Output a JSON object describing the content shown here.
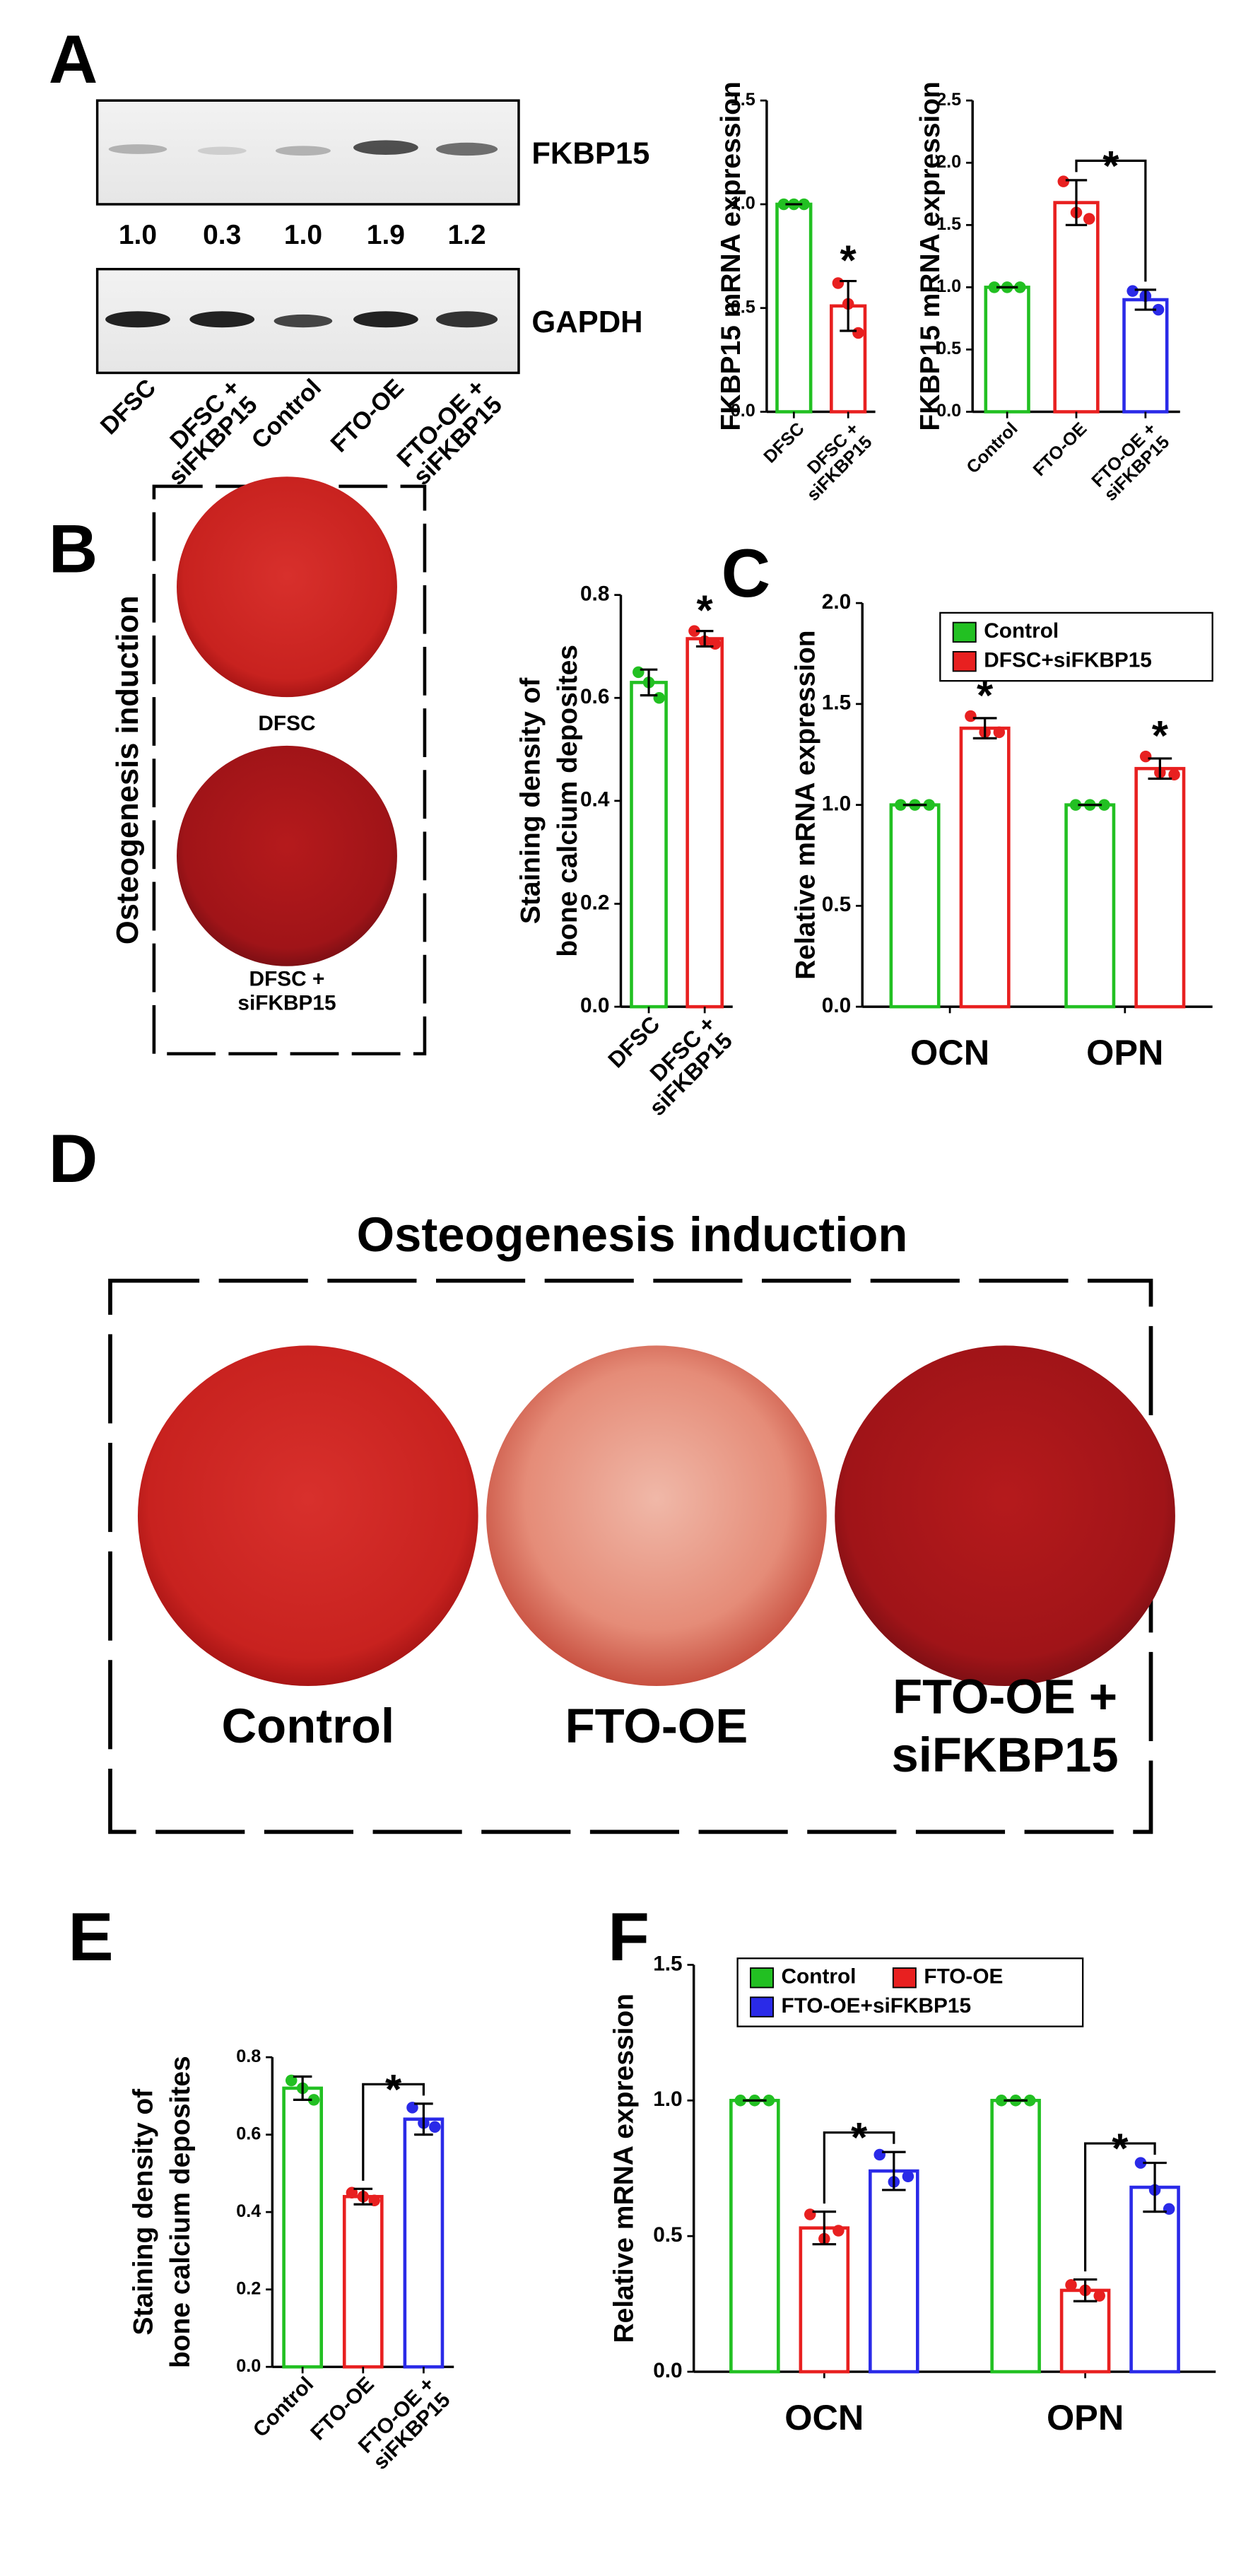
{
  "panel_labels": [
    "A",
    "B",
    "C",
    "D",
    "E",
    "F"
  ],
  "blot": {
    "targets": [
      "FKBP15",
      "GAPDH"
    ],
    "quantification": [
      "1.0",
      "0.3",
      "1.0",
      "1.9",
      "1.2"
    ],
    "lanes": [
      "DFSC",
      [
        "DFSC +",
        "siFKBP15"
      ],
      "Control",
      "FTO-OE",
      [
        "FTO-OE +",
        "siFKBP15"
      ]
    ]
  },
  "staining_B": {
    "side_label": "Osteogenesis induction",
    "wells": [
      "DFSC",
      [
        "DFSC +",
        "siFKBP15"
      ]
    ]
  },
  "staining_D": {
    "title": "Osteogenesis induction",
    "wells": [
      "Control",
      "FTO-OE",
      [
        "FTO-OE +",
        "siFKBP15"
      ]
    ]
  },
  "chart_data": [
    {
      "type": "bar",
      "y_label": "FKBP15 mRNA expression",
      "categories": [
        "DFSC",
        [
          "DFSC +",
          "siFKBP15"
        ]
      ],
      "values": [
        1.0,
        0.51
      ],
      "errors": [
        0,
        0.12
      ],
      "points": [
        [
          1,
          1,
          1
        ],
        [
          0.62,
          0.52,
          0.38
        ]
      ],
      "colors": [
        "#22c022",
        "#e82020"
      ],
      "ylim": [
        0,
        1.5
      ],
      "yticks": [
        {
          "value": 0,
          "label": "0.0"
        },
        0.5,
        {
          "value": 1,
          "label": "1.0"
        },
        1.5
      ],
      "xtick_rotation": 45,
      "annotations": [
        {
          "text": "*",
          "bar": 1
        }
      ]
    },
    {
      "type": "bar",
      "y_label": "FKBP15 mRNA expression",
      "categories": [
        "Control",
        "FTO-OE",
        [
          "FTO-OE +",
          "siFKBP15"
        ]
      ],
      "values": [
        1.0,
        1.68,
        0.9
      ],
      "errors": [
        0,
        0.18,
        0.08
      ],
      "points": [
        [
          1,
          1,
          1
        ],
        [
          1.85,
          1.6,
          1.55
        ],
        [
          0.97,
          0.93,
          0.82
        ]
      ],
      "colors": [
        "#22c022",
        "#e82020",
        "#2a2ae8"
      ],
      "ylim": [
        0,
        2.5
      ],
      "yticks": [
        {
          "value": 0,
          "label": "0.0"
        },
        0.5,
        {
          "value": 1,
          "label": "1.0"
        },
        1.5,
        {
          "value": 2,
          "label": "2.0"
        },
        2.5
      ],
      "xtick_rotation": 45,
      "annotations": [
        {
          "text": "*",
          "bars": [
            1,
            2
          ]
        }
      ]
    },
    {
      "type": "bar",
      "y_label": [
        "Staining density of",
        "bone calcium deposites"
      ],
      "categories": [
        "DFSC",
        [
          "DFSC +",
          "siFKBP15"
        ]
      ],
      "values": [
        0.63,
        0.715
      ],
      "errors": [
        0.025,
        0.015
      ],
      "points": [
        [
          0.65,
          0.63,
          0.6
        ],
        [
          0.73,
          0.71,
          0.705
        ]
      ],
      "colors": [
        "#22c022",
        "#e82020"
      ],
      "ylim": [
        0,
        0.8
      ],
      "yticks": [
        {
          "value": 0,
          "label": "0.0"
        },
        0.2,
        0.4,
        0.6,
        0.8
      ],
      "xtick_rotation": 45,
      "annotations": [
        {
          "text": "*",
          "bar": 1
        }
      ]
    },
    {
      "type": "grouped_bar",
      "y_label": "Relative mRNA expression",
      "categories": [
        "OCN",
        "OPN"
      ],
      "series": [
        {
          "name": "Control",
          "color": "#22c022",
          "values": [
            1.0,
            1.0
          ],
          "errors": [
            0,
            0
          ],
          "points": [
            [
              1,
              1,
              1
            ],
            [
              1,
              1,
              1
            ]
          ]
        },
        {
          "name": "DFSC+siFKBP15",
          "color": "#e82020",
          "values": [
            1.38,
            1.18
          ],
          "errors": [
            0.05,
            0.05
          ],
          "points": [
            [
              1.44,
              1.36,
              1.36
            ],
            [
              1.24,
              1.16,
              1.15
            ]
          ]
        }
      ],
      "ylim": [
        0,
        2.0
      ],
      "yticks": [
        {
          "value": 0,
          "label": "0.0"
        },
        0.5,
        {
          "value": 1,
          "label": "1.0"
        },
        1.5,
        {
          "value": 2,
          "label": "2.0"
        }
      ],
      "legend": "upper left",
      "annotations": [
        {
          "text": "*",
          "category": 0,
          "series": 1
        },
        {
          "text": "*",
          "category": 1,
          "series": 1
        }
      ]
    },
    {
      "type": "bar",
      "y_label": [
        "Staining density of",
        "bone calcium deposites"
      ],
      "categories": [
        "Control",
        "FTO-OE",
        [
          "FTO-OE +",
          "siFKBP15"
        ]
      ],
      "values": [
        0.72,
        0.44,
        0.64
      ],
      "errors": [
        0.03,
        0.02,
        0.04
      ],
      "points": [
        [
          0.74,
          0.72,
          0.69
        ],
        [
          0.45,
          0.44,
          0.43
        ],
        [
          0.67,
          0.63,
          0.62
        ]
      ],
      "colors": [
        "#22c022",
        "#e82020",
        "#2a2ae8"
      ],
      "ylim": [
        0,
        0.8
      ],
      "yticks": [
        {
          "value": 0,
          "label": "0.0"
        },
        0.2,
        0.4,
        0.6,
        0.8
      ],
      "xtick_rotation": 45,
      "annotations": [
        {
          "text": "*",
          "bars": [
            1,
            2
          ]
        }
      ]
    },
    {
      "type": "grouped_bar",
      "y_label": "Relative mRNA expression",
      "categories": [
        "OCN",
        "OPN"
      ],
      "series": [
        {
          "name": "Control",
          "color": "#22c022",
          "values": [
            1.0,
            1.0
          ],
          "errors": [
            0,
            0
          ],
          "points": [
            [
              1,
              1,
              1
            ],
            [
              1,
              1,
              1
            ]
          ]
        },
        {
          "name": "FTO-OE",
          "color": "#e82020",
          "values": [
            0.53,
            0.3
          ],
          "errors": [
            0.06,
            0.04
          ],
          "points": [
            [
              0.58,
              0.49,
              0.52
            ],
            [
              0.32,
              0.3,
              0.28
            ]
          ]
        },
        {
          "name": "FTO-OE+siFKBP15",
          "color": "#2a2ae8",
          "values": [
            0.74,
            0.68
          ],
          "errors": [
            0.07,
            0.09
          ],
          "points": [
            [
              0.8,
              0.7,
              0.72
            ],
            [
              0.77,
              0.67,
              0.6
            ]
          ]
        }
      ],
      "ylim": [
        0,
        1.5
      ],
      "yticks": [
        {
          "value": 0,
          "label": "0.0"
        },
        0.5,
        {
          "value": 1,
          "label": "1.0"
        },
        1.5
      ],
      "legend": "upper left",
      "annotations": [
        {
          "text": "*",
          "category": 0,
          "series": [
            1,
            2
          ]
        },
        {
          "text": "*",
          "category": 1,
          "series": [
            1,
            2
          ]
        }
      ]
    }
  ]
}
